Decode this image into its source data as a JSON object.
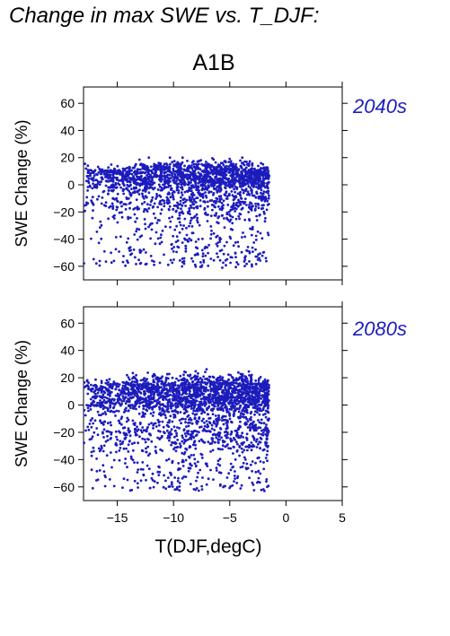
{
  "title": "Change in max SWE vs. T_DJF:",
  "scenario": "A1B",
  "colors": {
    "points": "#1c1cbc",
    "panel_label": "#1c1cbc",
    "axis": "#000000"
  },
  "chart_data": [
    {
      "type": "scatter",
      "panel_label": "2040s",
      "xlabel": "",
      "ylabel": "SWE Change (%)",
      "xlim": [
        -18,
        5
      ],
      "ylim": [
        -70,
        72
      ],
      "xticks": [
        -15,
        -10,
        -5,
        0,
        5
      ],
      "yticks": [
        -60,
        -40,
        -20,
        0,
        20,
        40,
        60
      ],
      "xtick_labels": [
        "−15",
        "−10",
        "−5",
        "0",
        "5"
      ],
      "ytick_labels": [
        "−60",
        "−40",
        "−20",
        "0",
        "20",
        "40",
        "60"
      ],
      "show_x_tick_labels": false,
      "point_cloud": {
        "n_points": 2200,
        "x_range": [
          -18,
          -1.5
        ],
        "dense_band_y": [
          -20,
          15
        ],
        "y_range": [
          -61,
          20
        ]
      }
    },
    {
      "type": "scatter",
      "panel_label": "2080s",
      "xlabel": "T(DJF,degC)",
      "ylabel": "SWE Change (%)",
      "xlim": [
        -18,
        5
      ],
      "ylim": [
        -70,
        72
      ],
      "xticks": [
        -15,
        -10,
        -5,
        0,
        5
      ],
      "yticks": [
        -60,
        -40,
        -20,
        0,
        20,
        40,
        60
      ],
      "xtick_labels": [
        "−15",
        "−10",
        "−5",
        "0",
        "5"
      ],
      "ytick_labels": [
        "−60",
        "−40",
        "−20",
        "0",
        "20",
        "40",
        "60"
      ],
      "show_x_tick_labels": true,
      "point_cloud": {
        "n_points": 2600,
        "x_range": [
          -18,
          -1.5
        ],
        "dense_band_y": [
          -30,
          20
        ],
        "y_range": [
          -63,
          35
        ]
      }
    }
  ]
}
